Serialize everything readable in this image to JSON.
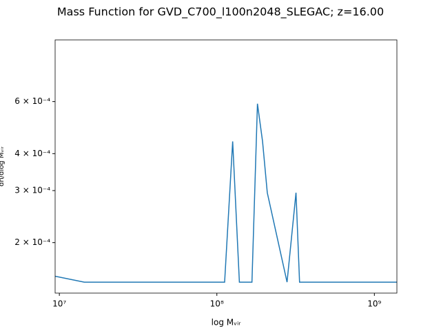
{
  "chart_data": {
    "type": "line",
    "title": "Mass Function for GVD_C700_l100n2048_SLEGAC; z=16.00",
    "x_label": "log Mᵥᵢᵣ",
    "y_label": "dn/dlog Mᵥᵢᵣ",
    "x_scale": "log",
    "y_scale": "log",
    "xlim": [
      9400000,
      1390000000
    ],
    "ylim": [
      0.000135,
      0.00097
    ],
    "xticks": [
      {
        "value": 10000000,
        "label": "10⁷"
      },
      {
        "value": 100000000,
        "label": "10⁸"
      },
      {
        "value": 1000000000,
        "label": "10⁹"
      }
    ],
    "yticks": [
      {
        "value": 0.0002,
        "label": "2 × 10⁻⁴"
      },
      {
        "value": 0.0003,
        "label": "3 × 10⁻⁴"
      },
      {
        "value": 0.0004,
        "label": "4 × 10⁻⁴"
      },
      {
        "value": 0.0006,
        "label": "6 × 10⁻⁴"
      }
    ],
    "series": [
      {
        "color": "#1f77b4",
        "x": [
          9400000,
          14400000,
          112000000,
          126000000,
          139000000,
          167000000,
          181000000,
          195000000,
          209000000,
          279000000,
          318000000,
          335000000,
          1390000000
        ],
        "values": [
          0.000154,
          0.000147,
          0.000147,
          0.00044,
          0.000147,
          0.000147,
          0.00059,
          0.00044,
          0.000295,
          0.000147,
          0.000295,
          0.000147,
          0.000147
        ]
      }
    ]
  }
}
